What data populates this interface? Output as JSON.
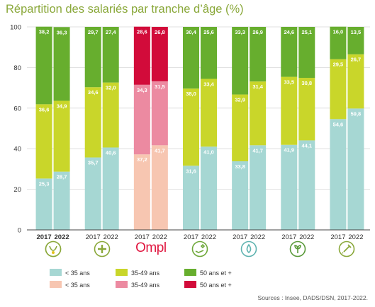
{
  "title": "Répartition des salariés par tranche d’âge (%)",
  "source": "Sources : Insee, DADS/DSN, 2017-2022.",
  "colors": {
    "lt35": "#a6d7d3",
    "mid": "#c9d62a",
    "gt50": "#67ae2e",
    "lt35_ompl": "#f7c6b1",
    "mid_ompl": "#ec8aa1",
    "gt50_ompl": "#d20b3a"
  },
  "legend": [
    {
      "label": "< 35 ans",
      "color": "#a6d7d3"
    },
    {
      "label": "35-49 ans",
      "color": "#c9d62a"
    },
    {
      "label": "50 ans et +",
      "color": "#67ae2e"
    },
    {
      "label": "< 35 ans",
      "color": "#f7c6b1"
    },
    {
      "label": "35-49 ans",
      "color": "#ec8aa1"
    },
    {
      "label": "50 ans et +",
      "color": "#d20b3a"
    }
  ],
  "icons": [
    {
      "name": "health-sector-icon",
      "color": "#8aa83a"
    },
    {
      "name": "plus-cross-icon",
      "color": "#8aa83a"
    },
    {
      "name": "ompl-logo",
      "text": "Ompl",
      "color": "#e0163f"
    },
    {
      "name": "hand-care-icon",
      "color": "#6fa83a"
    },
    {
      "name": "water-drop-icon",
      "color": "#5fb3b0"
    },
    {
      "name": "plant-icon",
      "color": "#5a9a3a"
    },
    {
      "name": "syringe-icon",
      "color": "#8aa83a"
    }
  ],
  "chart_data": {
    "type": "bar",
    "stacked": true,
    "title": "Répartition des salariés par tranche d’âge (%)",
    "ylim": [
      0,
      100
    ],
    "yticks": [
      0,
      20,
      40,
      60,
      80,
      100
    ],
    "grid": true,
    "groups": [
      {
        "bars": [
          {
            "year": "2017",
            "values": [
              25.3,
              36.6,
              38.2
            ]
          },
          {
            "year": "2022",
            "values": [
              28.7,
              34.9,
              36.3
            ]
          }
        ],
        "palette": "main",
        "bold_years": true
      },
      {
        "bars": [
          {
            "year": "2017",
            "values": [
              35.7,
              34.6,
              29.7
            ]
          },
          {
            "year": "2022",
            "values": [
              40.6,
              32.0,
              27.4
            ]
          }
        ],
        "palette": "main",
        "bold_years": false
      },
      {
        "bars": [
          {
            "year": "2017",
            "values": [
              37.2,
              34.3,
              28.6
            ]
          },
          {
            "year": "2022",
            "values": [
              41.7,
              31.5,
              26.8
            ]
          }
        ],
        "palette": "ompl",
        "bold_years": false
      },
      {
        "bars": [
          {
            "year": "2017",
            "values": [
              31.6,
              38.0,
              30.4
            ]
          },
          {
            "year": "2022",
            "values": [
              41.0,
              33.4,
              25.6
            ]
          }
        ],
        "palette": "main",
        "bold_years": false
      },
      {
        "bars": [
          {
            "year": "2017",
            "values": [
              33.8,
              32.9,
              33.3
            ]
          },
          {
            "year": "2022",
            "values": [
              41.7,
              31.4,
              26.9
            ]
          }
        ],
        "palette": "main",
        "bold_years": false
      },
      {
        "bars": [
          {
            "year": "2017",
            "values": [
              41.9,
              33.5,
              24.6
            ]
          },
          {
            "year": "2022",
            "values": [
              44.1,
              30.8,
              25.1
            ]
          }
        ],
        "palette": "main",
        "bold_years": false
      },
      {
        "bars": [
          {
            "year": "2017",
            "values": [
              54.6,
              29.5,
              16.0
            ]
          },
          {
            "year": "2022",
            "values": [
              59.8,
              26.7,
              13.5
            ]
          }
        ],
        "palette": "main",
        "bold_years": false
      }
    ],
    "series": [
      {
        "name": "< 35 ans"
      },
      {
        "name": "35-49 ans"
      },
      {
        "name": "50 ans et +"
      }
    ]
  }
}
